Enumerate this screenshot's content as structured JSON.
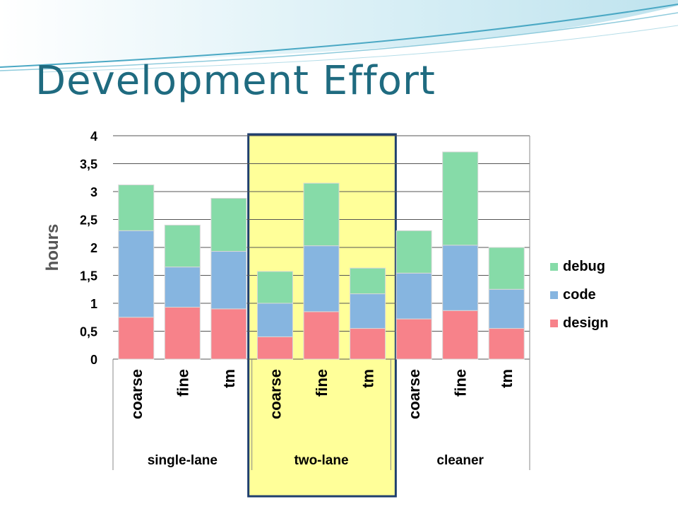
{
  "slide": {
    "title": "Development Effort"
  },
  "colors": {
    "title": "#1f6b80",
    "highlight_fill": "#ffff99",
    "highlight_border": "#1f3f6e",
    "grid": "#555555"
  },
  "chart_data": {
    "type": "bar",
    "stacked": true,
    "ylabel": "hours",
    "xlabel": "",
    "ylim": [
      0,
      4
    ],
    "yticks": [
      "0",
      "0,5",
      "1",
      "1,5",
      "2",
      "2,5",
      "3",
      "3,5",
      "4"
    ],
    "ytick_values": [
      0,
      0.5,
      1,
      1.5,
      2,
      2.5,
      3,
      3.5,
      4
    ],
    "grid": true,
    "legend_position": "right",
    "groups": [
      {
        "name": "single-lane",
        "categories": [
          "coarse",
          "fine",
          "tm"
        ]
      },
      {
        "name": "two-lane",
        "categories": [
          "coarse",
          "fine",
          "tm"
        ],
        "highlighted": true
      },
      {
        "name": "cleaner",
        "categories": [
          "coarse",
          "fine",
          "tm"
        ]
      }
    ],
    "series": [
      {
        "name": "design",
        "color": "#f7828a",
        "values": [
          0.75,
          0.93,
          0.9,
          0.4,
          0.85,
          0.55,
          0.72,
          0.87,
          0.55
        ]
      },
      {
        "name": "code",
        "color": "#86b5e0",
        "values": [
          1.55,
          0.72,
          1.03,
          0.6,
          1.18,
          0.62,
          0.82,
          1.17,
          0.7
        ]
      },
      {
        "name": "debug",
        "color": "#86dba8",
        "values": [
          0.82,
          0.75,
          0.95,
          0.57,
          1.12,
          0.46,
          0.76,
          1.67,
          0.75
        ]
      }
    ],
    "legend_order": [
      "debug",
      "code",
      "design"
    ]
  }
}
